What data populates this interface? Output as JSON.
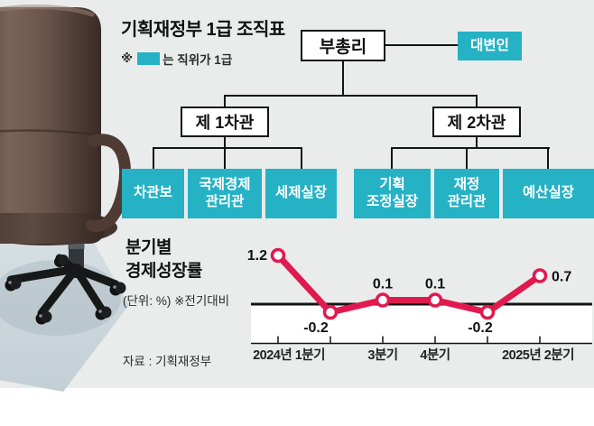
{
  "org_chart": {
    "title": "기획재정부 1급 조직표",
    "legend": {
      "prefix": "※",
      "swatch_meaning": "grade-1-position-teal",
      "suffix": "는 직위가 1급"
    },
    "deputy_pm": "부총리",
    "spokesperson": "대변인",
    "vice_minister_1": "제 1차관",
    "vice_minister_2": "제 2차관",
    "vice1_children": [
      {
        "label": "차관보"
      },
      {
        "label": "국제경제\n관리관"
      },
      {
        "label": "세제실장"
      }
    ],
    "vice2_children": [
      {
        "label": "기획\n조정실장"
      },
      {
        "label": "재정\n관리관"
      },
      {
        "label": "예산실장"
      }
    ]
  },
  "chart_data": {
    "type": "line",
    "title": "분기별\n경제성장률",
    "unit_note": "(단위: %)  ※전기대비",
    "source": "자료 : 기획재정부",
    "x_tick_labels": [
      "2024년 1분기",
      "",
      "3분기",
      "4분기",
      "",
      "2025년 2분기"
    ],
    "values": [
      1.2,
      -0.2,
      0.1,
      0.1,
      -0.2,
      0.7
    ],
    "ylim": [
      -0.7,
      1.6
    ],
    "grid": false,
    "legend_position": "none",
    "zero_line": true
  },
  "colors": {
    "accent_teal": "#25b2c5",
    "line_red": "#e01a4f",
    "panel_gray": "#e9eceb",
    "ink": "#141414",
    "floor_mat": "#c9d5da"
  }
}
